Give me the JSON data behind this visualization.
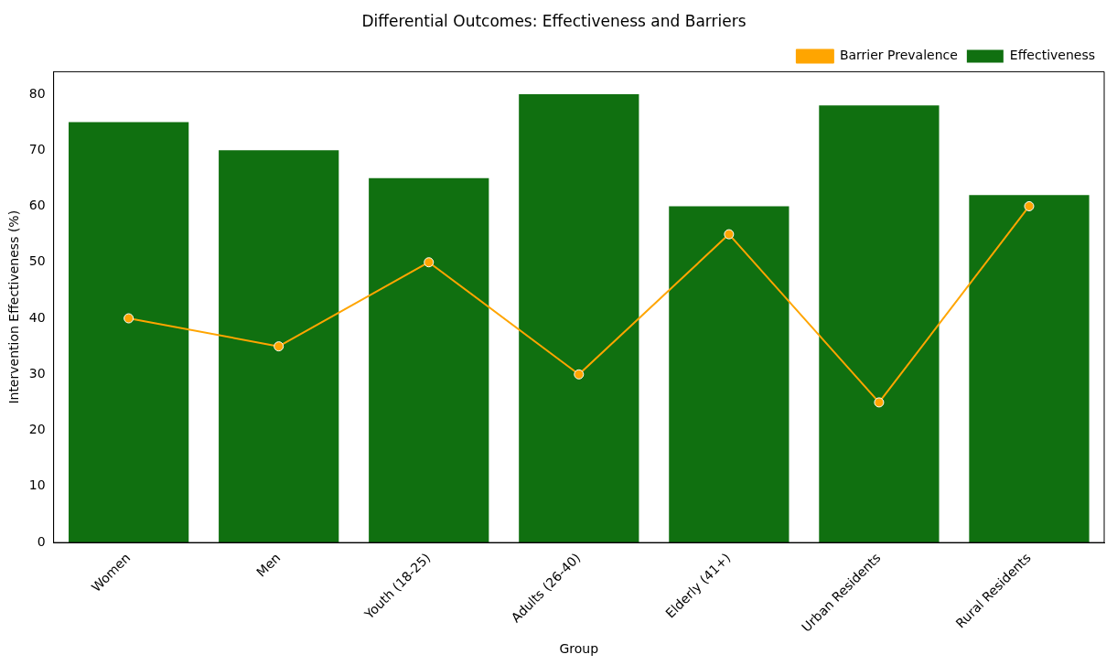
{
  "chart_data": {
    "type": "bar",
    "title": "Differential Outcomes: Effectiveness and Barriers",
    "xlabel": "Group",
    "ylabel": "Intervention Effectiveness (%)",
    "categories": [
      "Women",
      "Men",
      "Youth (18-25)",
      "Adults (26-40)",
      "Elderly (41+)",
      "Urban Residents",
      "Rural Residents"
    ],
    "series": [
      {
        "name": "Barrier Prevalence",
        "type": "line",
        "color": "#ffa500",
        "values": [
          40,
          35,
          50,
          30,
          55,
          25,
          60
        ]
      },
      {
        "name": "Effectiveness",
        "color": "#107010",
        "values": [
          75,
          70,
          65,
          80,
          60,
          78,
          62
        ]
      }
    ],
    "ylim": [
      0,
      84
    ],
    "yticks": [
      0,
      10,
      20,
      30,
      40,
      50,
      60,
      70,
      80
    ],
    "grid": false,
    "legend": "top right",
    "marker": "circle",
    "line_style": "solid"
  }
}
